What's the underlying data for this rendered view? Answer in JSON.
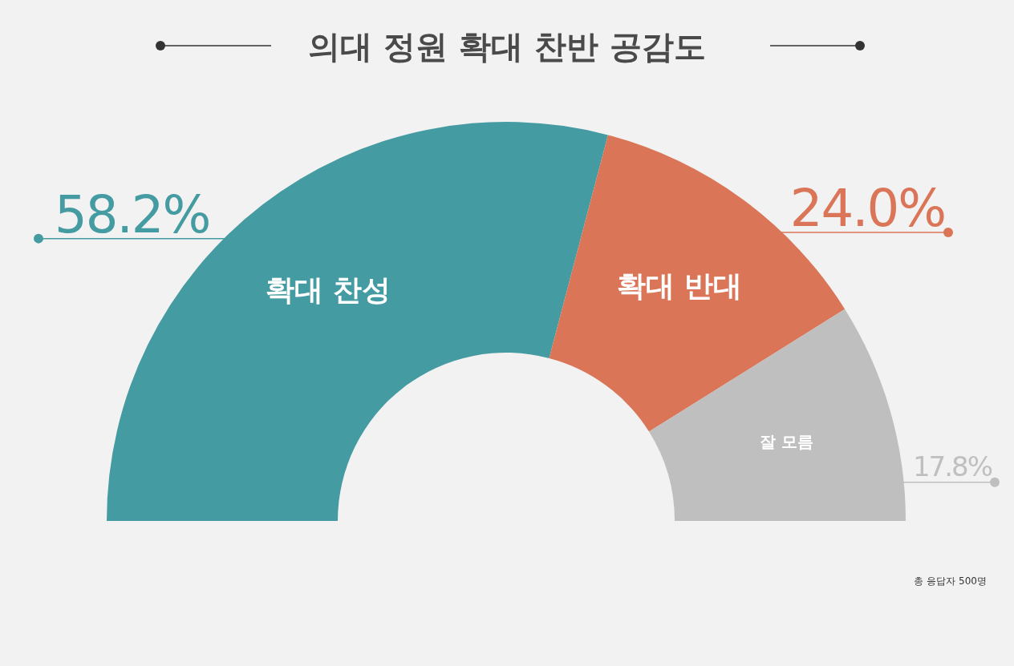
{
  "chart_data": {
    "type": "donut",
    "title": "의대 정원 확대 찬반 공감도",
    "categories": [
      "확대 찬성",
      "확대 반대",
      "잘 모름"
    ],
    "values": [
      58.2,
      24.0,
      17.8
    ],
    "colors": [
      "#459ba2",
      "#db7558",
      "#bfbfbf"
    ],
    "value_labels": [
      "58.2%",
      "24.0%",
      "17.8%"
    ],
    "annotations": [
      "총 응답자 500명"
    ]
  }
}
